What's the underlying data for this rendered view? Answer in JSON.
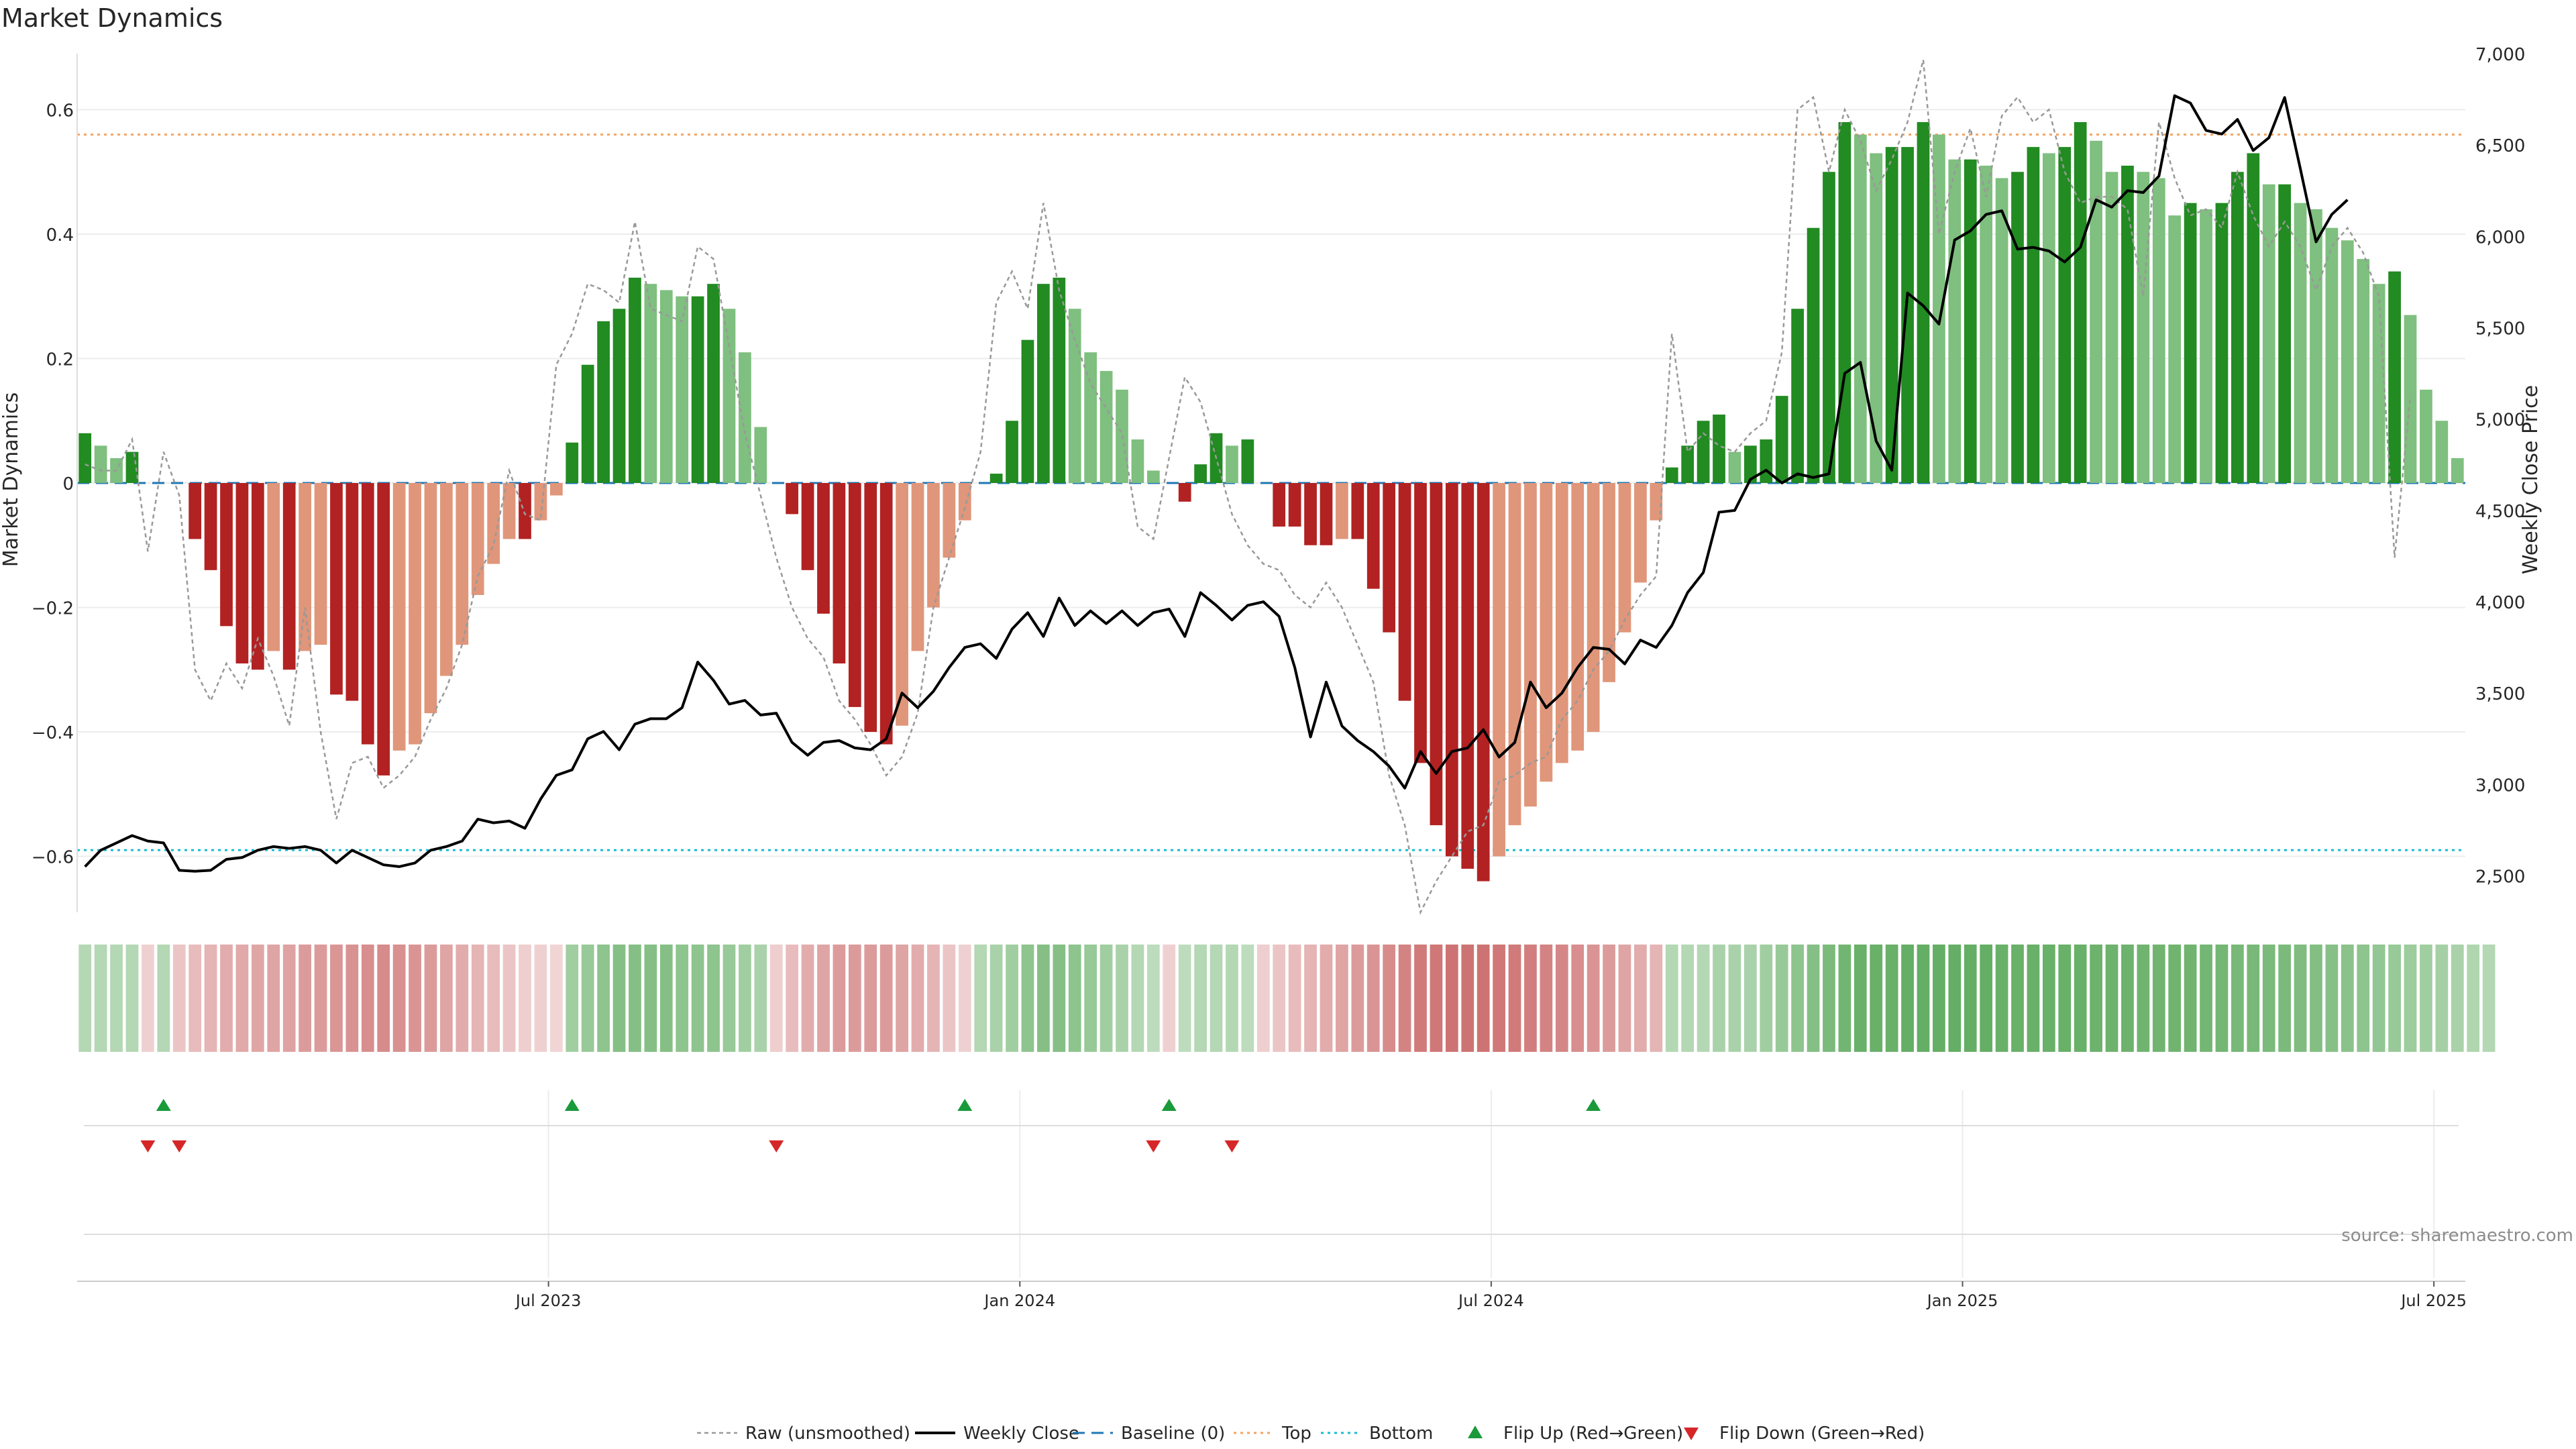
{
  "title": "Market Dynamics",
  "source": "source: sharemaestro.com",
  "colors": {
    "strong_green": "#228B22",
    "light_green": "#7fbf7f",
    "strong_red": "#b22222",
    "light_red": "#e0967a",
    "close_line": "#000000",
    "raw_line": "#999999",
    "baseline": "#1f77b4",
    "top_line": "#f4a460",
    "bottom_line": "#17becf",
    "flip_up": "#1a9a3a",
    "flip_down": "#d62728"
  },
  "chart_data": {
    "type": "bar",
    "title": "Market Dynamics",
    "ylabel": "Market Dynamics",
    "y2label": "Weekly Close Price",
    "ylim": [
      -0.69,
      0.69
    ],
    "y2lim": [
      2300,
      7000
    ],
    "yticks": [
      -0.6,
      -0.4,
      -0.2,
      0,
      0.2,
      0.4,
      0.6
    ],
    "ytick_labels": [
      "−0.6",
      "−0.4",
      "−0.2",
      "0",
      "0.2",
      "0.4",
      "0.6"
    ],
    "y2ticks": [
      2500,
      3000,
      3500,
      4000,
      4500,
      5000,
      5500,
      6000,
      6500,
      7000
    ],
    "y2tick_labels": [
      "2,500",
      "3,000",
      "3,500",
      "4,000",
      "4,500",
      "5,000",
      "5,500",
      "6,000",
      "6,500",
      "7,000"
    ],
    "xlabel": "",
    "xtick_labels": [
      "Jul 2023",
      "Jan 2024",
      "Jul 2024",
      "Jan 2025",
      "Jul 2025"
    ],
    "xtick_weeks": [
      30,
      60,
      90,
      120,
      150
    ],
    "top_level": 0.56,
    "bottom_level": -0.59,
    "legend_position": "bottom-center",
    "grid": true,
    "legend": [
      "Raw (unsmoothed)",
      "Weekly Close",
      "Baseline (0)",
      "Top",
      "Bottom",
      "Flip Up (Red→Green)",
      "Flip Down (Green→Red)"
    ],
    "bars": [
      0.08,
      0.06,
      0.04,
      0.05,
      0,
      0,
      0,
      -0.09,
      -0.14,
      -0.23,
      -0.29,
      -0.3,
      -0.27,
      -0.3,
      -0.27,
      -0.26,
      -0.34,
      -0.35,
      -0.42,
      -0.47,
      -0.43,
      -0.42,
      -0.37,
      -0.31,
      -0.26,
      -0.18,
      -0.13,
      -0.09,
      -0.09,
      -0.06,
      -0.02,
      0.065,
      0.19,
      0.26,
      0.28,
      0.33,
      0.32,
      0.31,
      0.3,
      0.3,
      0.32,
      0.28,
      0.21,
      0.09,
      0,
      -0.05,
      -0.14,
      -0.21,
      -0.29,
      -0.36,
      -0.4,
      -0.42,
      -0.39,
      -0.27,
      -0.2,
      -0.12,
      -0.06,
      0,
      0.015,
      0.1,
      0.23,
      0.32,
      0.33,
      0.28,
      0.21,
      0.18,
      0.15,
      0.07,
      0.02,
      0,
      -0.03,
      0.03,
      0.08,
      0.06,
      0.07,
      0,
      -0.07,
      -0.07,
      -0.1,
      -0.1,
      -0.09,
      -0.09,
      -0.17,
      -0.24,
      -0.35,
      -0.45,
      -0.55,
      -0.6,
      -0.62,
      -0.64,
      -0.6,
      -0.55,
      -0.52,
      -0.48,
      -0.45,
      -0.43,
      -0.4,
      -0.32,
      -0.24,
      -0.16,
      -0.06,
      0.025,
      0.06,
      0.1,
      0.11,
      0.05,
      0.06,
      0.07,
      0.14,
      0.28,
      0.41,
      0.5,
      0.58,
      0.56,
      0.53,
      0.54,
      0.54,
      0.58,
      0.56,
      0.52,
      0.52,
      0.51,
      0.49,
      0.5,
      0.54,
      0.53,
      0.54,
      0.58,
      0.55,
      0.5,
      0.51,
      0.5,
      0.49,
      0.43,
      0.45,
      0.44,
      0.45,
      0.5,
      0.53,
      0.48,
      0.48,
      0.45,
      0.44,
      0.41,
      0.39,
      0.36,
      0.32,
      0.34,
      0.27,
      0.15,
      0.1,
      0.04
    ],
    "raw": [
      0.03,
      0.02,
      0.02,
      0.07,
      -0.11,
      0.05,
      -0.02,
      -0.3,
      -0.35,
      -0.29,
      -0.33,
      -0.25,
      -0.31,
      -0.39,
      -0.2,
      -0.4,
      -0.54,
      -0.45,
      -0.44,
      -0.49,
      -0.47,
      -0.44,
      -0.38,
      -0.33,
      -0.26,
      -0.15,
      -0.1,
      0.02,
      -0.05,
      -0.06,
      0.19,
      0.24,
      0.32,
      0.31,
      0.29,
      0.42,
      0.28,
      0.27,
      0.26,
      0.38,
      0.36,
      0.22,
      0.08,
      -0.02,
      -0.12,
      -0.2,
      -0.25,
      -0.28,
      -0.35,
      -0.38,
      -0.42,
      -0.47,
      -0.44,
      -0.37,
      -0.2,
      -0.12,
      -0.04,
      0.05,
      0.29,
      0.34,
      0.28,
      0.45,
      0.31,
      0.23,
      0.16,
      0.12,
      0.08,
      -0.07,
      -0.09,
      0.04,
      0.17,
      0.13,
      0.04,
      -0.05,
      -0.1,
      -0.13,
      -0.14,
      -0.18,
      -0.2,
      -0.16,
      -0.2,
      -0.26,
      -0.32,
      -0.47,
      -0.55,
      -0.69,
      -0.64,
      -0.6,
      -0.56,
      -0.55,
      -0.48,
      -0.47,
      -0.45,
      -0.44,
      -0.38,
      -0.35,
      -0.3,
      -0.27,
      -0.22,
      -0.18,
      -0.15,
      0.24,
      0.05,
      0.08,
      0.06,
      0.05,
      0.08,
      0.1,
      0.21,
      0.6,
      0.62,
      0.5,
      0.6,
      0.55,
      0.47,
      0.52,
      0.58,
      0.68,
      0.4,
      0.5,
      0.57,
      0.46,
      0.59,
      0.62,
      0.58,
      0.6,
      0.5,
      0.45,
      0.46,
      0.46,
      0.44,
      0.3,
      0.58,
      0.49,
      0.43,
      0.44,
      0.41,
      0.5,
      0.43,
      0.38,
      0.42,
      0.38,
      0.31,
      0.38,
      0.41,
      0.37,
      0.3,
      -0.12,
      0.14
    ]
  },
  "series_close": [
    2550,
    2640,
    2680,
    2720,
    2690,
    2680,
    2530,
    2525,
    2530,
    2590,
    2600,
    2640,
    2660,
    2650,
    2660,
    2640,
    2570,
    2640,
    2600,
    2560,
    2550,
    2570,
    2640,
    2660,
    2690,
    2810,
    2790,
    2800,
    2760,
    2920,
    3050,
    3080,
    3250,
    3290,
    3190,
    3330,
    3360,
    3360,
    3420,
    3670,
    3570,
    3440,
    3460,
    3380,
    3390,
    3230,
    3160,
    3230,
    3240,
    3200,
    3190,
    3250,
    3500,
    3420,
    3510,
    3640,
    3750,
    3770,
    3690,
    3850,
    3940,
    3810,
    4020,
    3870,
    3950,
    3880,
    3950,
    3870,
    3940,
    3960,
    3810,
    4050,
    3980,
    3900,
    3980,
    4000,
    3920,
    3640,
    3260,
    3560,
    3320,
    3240,
    3180,
    3100,
    2980,
    3180,
    3060,
    3180,
    3200,
    3300,
    3150,
    3230,
    3560,
    3420,
    3500,
    3640,
    3750,
    3740,
    3660,
    3790,
    3750,
    3870,
    4050,
    4160,
    4490,
    4500,
    4670,
    4720,
    4650,
    4700,
    4680,
    4700,
    5250,
    5310,
    4880,
    4720,
    5690,
    5620,
    5520,
    5980,
    6030,
    6120,
    6140,
    5930,
    5940,
    5920,
    5860,
    5940,
    6200,
    6160,
    6250,
    6240,
    6330,
    6770,
    6730,
    6580,
    6560,
    6640,
    6470,
    6540,
    6760,
    6370,
    5970,
    6120,
    6200
  ],
  "flips_up": [
    5,
    31,
    56,
    69,
    96
  ],
  "flips_down": [
    4,
    6,
    44,
    68,
    73
  ],
  "heat_strip": [
    0.3,
    0.3,
    0.3,
    0.3,
    -0.18,
    0.3,
    -0.25,
    -0.3,
    -0.35,
    -0.4,
    -0.42,
    -0.44,
    -0.45,
    -0.46,
    -0.5,
    -0.5,
    -0.54,
    -0.56,
    -0.58,
    -0.6,
    -0.57,
    -0.55,
    -0.5,
    -0.45,
    -0.4,
    -0.35,
    -0.3,
    -0.25,
    -0.2,
    -0.18,
    -0.15,
    0.4,
    0.45,
    0.5,
    0.55,
    0.55,
    0.55,
    0.55,
    0.5,
    0.5,
    0.5,
    0.45,
    0.4,
    0.35,
    -0.2,
    -0.3,
    -0.4,
    -0.45,
    -0.5,
    -0.5,
    -0.5,
    -0.5,
    -0.45,
    -0.4,
    -0.35,
    -0.25,
    -0.18,
    0.3,
    0.35,
    0.4,
    0.5,
    0.55,
    0.55,
    0.5,
    0.45,
    0.4,
    0.35,
    0.3,
    0.25,
    -0.18,
    0.25,
    0.3,
    0.3,
    0.3,
    0.25,
    -0.2,
    -0.25,
    -0.3,
    -0.35,
    -0.4,
    -0.45,
    -0.5,
    -0.55,
    -0.6,
    -0.65,
    -0.7,
    -0.72,
    -0.74,
    -0.74,
    -0.74,
    -0.72,
    -0.7,
    -0.68,
    -0.65,
    -0.62,
    -0.58,
    -0.55,
    -0.5,
    -0.45,
    -0.4,
    -0.35,
    0.3,
    0.3,
    0.3,
    0.35,
    0.35,
    0.35,
    0.4,
    0.45,
    0.5,
    0.55,
    0.6,
    0.65,
    0.7,
    0.7,
    0.7,
    0.72,
    0.72,
    0.72,
    0.72,
    0.72,
    0.72,
    0.7,
    0.7,
    0.7,
    0.7,
    0.7,
    0.7,
    0.68,
    0.68,
    0.68,
    0.66,
    0.66,
    0.66,
    0.66,
    0.64,
    0.64,
    0.62,
    0.62,
    0.6,
    0.6,
    0.58,
    0.56,
    0.54,
    0.52,
    0.5,
    0.48,
    0.45,
    0.42,
    0.4,
    0.38,
    0.35,
    0.32,
    0.3
  ]
}
